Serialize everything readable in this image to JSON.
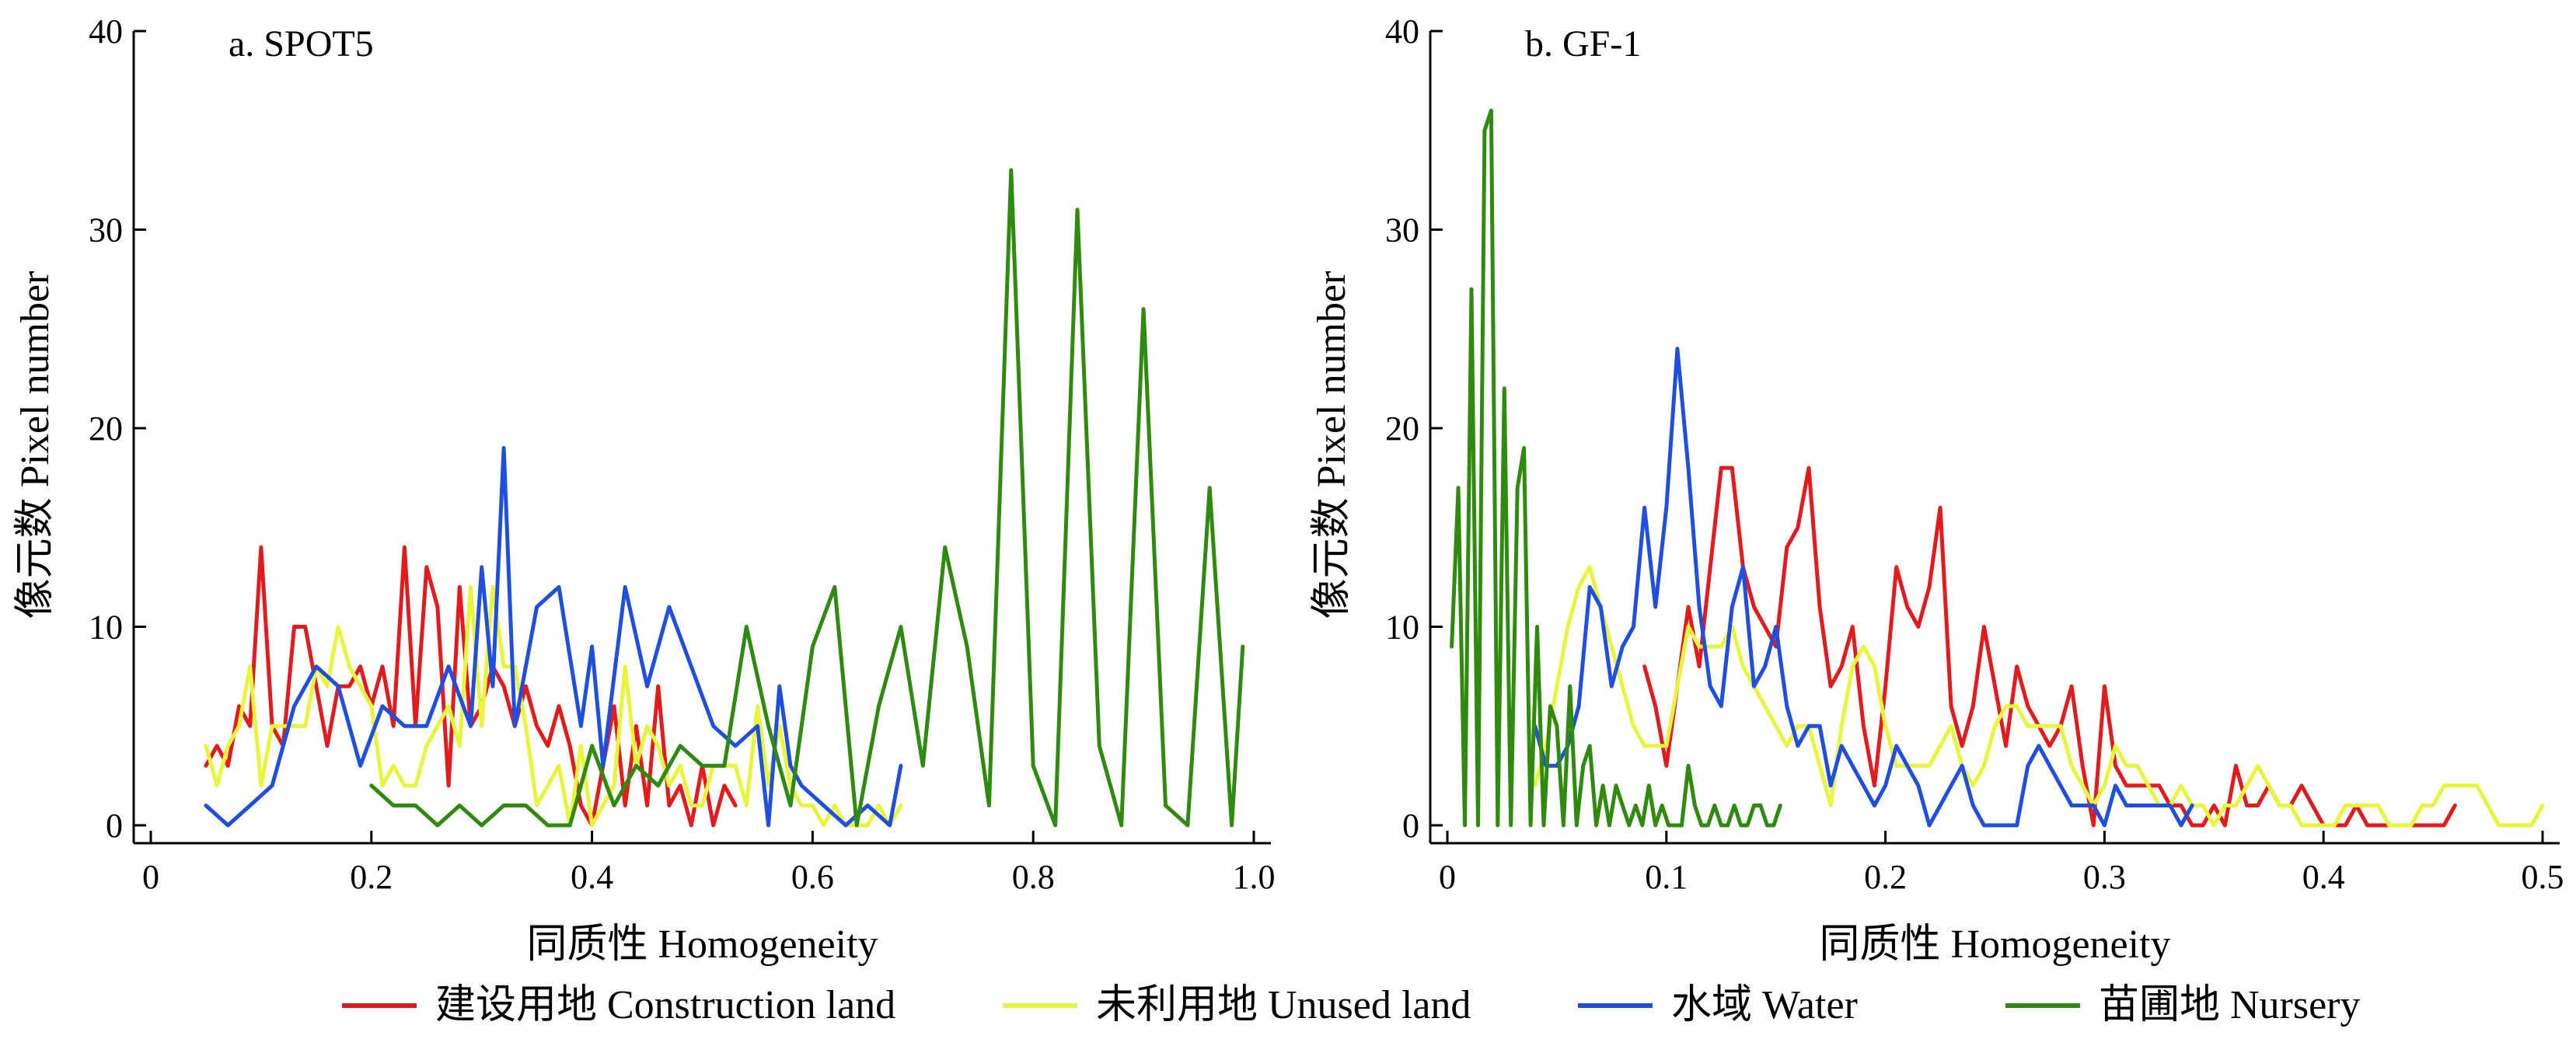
{
  "colors": {
    "construction": "#e41a1c",
    "unused": "#e8f53a",
    "water": "#1f4fe0",
    "nursery": "#2e8b0e"
  },
  "legend": [
    {
      "key": "construction",
      "label": "建设用地 Construction land"
    },
    {
      "key": "unused",
      "label": "未利用地 Unused land"
    },
    {
      "key": "water",
      "label": "水域 Water"
    },
    {
      "key": "nursery",
      "label": "苗圃地 Nursery"
    }
  ],
  "chart_data": [
    {
      "type": "line",
      "title": "a. SPOT5",
      "xlabel": "同质性 Homogeneity",
      "ylabel": "像元数 Pixel number",
      "xlim": [
        0,
        1.0
      ],
      "ylim": [
        0,
        40
      ],
      "xticks": [
        0,
        0.2,
        0.4,
        0.6,
        0.8,
        1.0
      ],
      "xtick_labels": [
        "0",
        "0.2",
        "0.4",
        "0.6",
        "0.8",
        "1.0"
      ],
      "yticks": [
        0,
        10,
        20,
        30,
        40
      ],
      "ytick_labels": [
        "0",
        "10",
        "20",
        "30",
        "40"
      ],
      "series": [
        {
          "key": "construction",
          "name": "建设用地 Construction land",
          "x": [
            0.05,
            0.06,
            0.07,
            0.08,
            0.09,
            0.1,
            0.11,
            0.12,
            0.13,
            0.14,
            0.15,
            0.16,
            0.17,
            0.18,
            0.19,
            0.2,
            0.21,
            0.22,
            0.23,
            0.24,
            0.25,
            0.26,
            0.27,
            0.28,
            0.29,
            0.3,
            0.31,
            0.32,
            0.33,
            0.34,
            0.35,
            0.36,
            0.37,
            0.38,
            0.39,
            0.4,
            0.41,
            0.42,
            0.43,
            0.44,
            0.45,
            0.46,
            0.47,
            0.48,
            0.49,
            0.5,
            0.51,
            0.52,
            0.53
          ],
          "y": [
            3,
            4,
            3,
            6,
            5,
            14,
            5,
            4,
            10,
            10,
            7,
            4,
            7,
            7,
            8,
            6,
            8,
            5,
            14,
            5,
            13,
            11,
            2,
            12,
            5,
            6,
            8,
            7,
            5,
            7,
            5,
            4,
            6,
            4,
            1,
            0,
            3,
            6,
            1,
            5,
            1,
            7,
            1,
            2,
            0,
            3,
            0,
            2,
            1
          ]
        },
        {
          "key": "unused",
          "name": "未利用地 Unused land",
          "x": [
            0.05,
            0.06,
            0.07,
            0.08,
            0.09,
            0.1,
            0.11,
            0.12,
            0.13,
            0.14,
            0.15,
            0.16,
            0.17,
            0.18,
            0.19,
            0.2,
            0.21,
            0.22,
            0.23,
            0.24,
            0.25,
            0.26,
            0.27,
            0.28,
            0.29,
            0.3,
            0.31,
            0.32,
            0.33,
            0.34,
            0.35,
            0.36,
            0.37,
            0.38,
            0.39,
            0.4,
            0.41,
            0.42,
            0.43,
            0.44,
            0.45,
            0.46,
            0.47,
            0.48,
            0.49,
            0.5,
            0.51,
            0.52,
            0.53,
            0.54,
            0.55,
            0.56,
            0.57,
            0.58,
            0.59,
            0.6,
            0.61,
            0.62,
            0.63,
            0.64,
            0.65,
            0.66,
            0.67,
            0.68
          ],
          "y": [
            4,
            2,
            4,
            5,
            8,
            2,
            5,
            5,
            5,
            5,
            8,
            7,
            10,
            8,
            7,
            6,
            2,
            3,
            2,
            2,
            4,
            5,
            6,
            4,
            12,
            5,
            12,
            8,
            8,
            5,
            1,
            2,
            3,
            0,
            4,
            0,
            1,
            2,
            8,
            3,
            5,
            4,
            2,
            3,
            1,
            1,
            3,
            3,
            3,
            1,
            6,
            2,
            5,
            2,
            1,
            1,
            0,
            1,
            0,
            0,
            0,
            1,
            0,
            1
          ]
        },
        {
          "key": "water",
          "name": "水域 Water",
          "x": [
            0.05,
            0.07,
            0.09,
            0.11,
            0.13,
            0.15,
            0.17,
            0.19,
            0.21,
            0.23,
            0.25,
            0.27,
            0.29,
            0.3,
            0.31,
            0.32,
            0.33,
            0.35,
            0.37,
            0.39,
            0.4,
            0.41,
            0.43,
            0.45,
            0.47,
            0.49,
            0.51,
            0.53,
            0.55,
            0.56,
            0.57,
            0.58,
            0.59,
            0.61,
            0.63,
            0.65,
            0.67,
            0.68
          ],
          "y": [
            1,
            0,
            1,
            2,
            6,
            8,
            7,
            3,
            6,
            5,
            5,
            8,
            5,
            13,
            7,
            19,
            5,
            11,
            12,
            5,
            9,
            3,
            12,
            7,
            11,
            8,
            5,
            4,
            5,
            0,
            7,
            3,
            2,
            1,
            0,
            1,
            0,
            3
          ]
        },
        {
          "key": "nursery",
          "name": "苗圃地 Nursery",
          "x": [
            0.2,
            0.22,
            0.24,
            0.26,
            0.28,
            0.3,
            0.32,
            0.34,
            0.36,
            0.38,
            0.4,
            0.42,
            0.44,
            0.46,
            0.48,
            0.5,
            0.52,
            0.54,
            0.56,
            0.58,
            0.6,
            0.62,
            0.64,
            0.66,
            0.68,
            0.7,
            0.72,
            0.74,
            0.76,
            0.78,
            0.8,
            0.82,
            0.84,
            0.86,
            0.88,
            0.9,
            0.92,
            0.94,
            0.96,
            0.98,
            0.99
          ],
          "y": [
            2,
            1,
            1,
            0,
            1,
            0,
            1,
            1,
            0,
            0,
            4,
            1,
            3,
            2,
            4,
            3,
            3,
            10,
            5,
            1,
            9,
            12,
            0,
            6,
            10,
            3,
            14,
            9,
            1,
            33,
            3,
            0,
            31,
            4,
            0,
            26,
            1,
            0,
            17,
            0,
            9
          ]
        }
      ]
    },
    {
      "type": "line",
      "title": "b. GF-1",
      "xlabel": "同质性 Homogeneity",
      "ylabel": "像元数 Pixel number",
      "xlim": [
        0,
        0.5
      ],
      "ylim": [
        0,
        40
      ],
      "xticks": [
        0,
        0.1,
        0.2,
        0.3,
        0.4,
        0.5
      ],
      "xtick_labels": [
        "0",
        "0.1",
        "0.2",
        "0.3",
        "0.4",
        "0.5"
      ],
      "yticks": [
        0,
        10,
        20,
        30,
        40
      ],
      "ytick_labels": [
        "0",
        "10",
        "20",
        "30",
        "40"
      ],
      "series": [
        {
          "key": "construction",
          "name": "建设用地 Construction land",
          "x": [
            0.09,
            0.095,
            0.1,
            0.105,
            0.11,
            0.115,
            0.12,
            0.125,
            0.13,
            0.135,
            0.14,
            0.145,
            0.15,
            0.155,
            0.16,
            0.165,
            0.17,
            0.175,
            0.18,
            0.185,
            0.19,
            0.195,
            0.2,
            0.205,
            0.21,
            0.215,
            0.22,
            0.225,
            0.23,
            0.235,
            0.24,
            0.245,
            0.25,
            0.255,
            0.26,
            0.265,
            0.27,
            0.275,
            0.28,
            0.285,
            0.29,
            0.295,
            0.3,
            0.305,
            0.31,
            0.315,
            0.32,
            0.325,
            0.33,
            0.335,
            0.34,
            0.345,
            0.35,
            0.355,
            0.36,
            0.365,
            0.37,
            0.375,
            0.38,
            0.385,
            0.39,
            0.395,
            0.4,
            0.405,
            0.41,
            0.415,
            0.42,
            0.425,
            0.43,
            0.435,
            0.44,
            0.445,
            0.45,
            0.455,
            0.46
          ],
          "y": [
            8,
            6,
            3,
            7,
            11,
            8,
            13,
            18,
            18,
            13,
            11,
            10,
            9,
            14,
            15,
            18,
            11,
            7,
            8,
            10,
            5,
            2,
            7,
            13,
            11,
            10,
            12,
            16,
            6,
            4,
            6,
            10,
            7,
            4,
            8,
            6,
            5,
            4,
            5,
            7,
            3,
            0,
            7,
            3,
            2,
            2,
            2,
            2,
            1,
            1,
            0,
            0,
            1,
            0,
            3,
            1,
            1,
            2,
            1,
            1,
            2,
            1,
            0,
            0,
            0,
            1,
            0,
            0,
            0,
            0,
            0,
            0,
            0,
            0,
            1
          ]
        },
        {
          "key": "unused",
          "name": "未利用地 Unused land",
          "x": [
            0.04,
            0.045,
            0.05,
            0.055,
            0.06,
            0.065,
            0.07,
            0.075,
            0.08,
            0.085,
            0.09,
            0.095,
            0.1,
            0.105,
            0.11,
            0.115,
            0.12,
            0.125,
            0.13,
            0.135,
            0.14,
            0.145,
            0.15,
            0.155,
            0.16,
            0.165,
            0.17,
            0.175,
            0.18,
            0.185,
            0.19,
            0.195,
            0.2,
            0.205,
            0.21,
            0.215,
            0.22,
            0.225,
            0.23,
            0.235,
            0.24,
            0.245,
            0.25,
            0.255,
            0.26,
            0.265,
            0.27,
            0.275,
            0.28,
            0.285,
            0.29,
            0.295,
            0.3,
            0.305,
            0.31,
            0.315,
            0.32,
            0.325,
            0.33,
            0.335,
            0.34,
            0.345,
            0.35,
            0.355,
            0.36,
            0.365,
            0.37,
            0.375,
            0.38,
            0.385,
            0.39,
            0.395,
            0.4,
            0.405,
            0.41,
            0.415,
            0.42,
            0.425,
            0.43,
            0.435,
            0.44,
            0.445,
            0.45,
            0.455,
            0.46,
            0.465,
            0.47,
            0.475,
            0.48,
            0.485,
            0.49,
            0.495,
            0.5
          ],
          "y": [
            2,
            4,
            7,
            10,
            12,
            13,
            11,
            9,
            7,
            5,
            4,
            4,
            4,
            7,
            10,
            9,
            9,
            9,
            10,
            8,
            7,
            6,
            5,
            4,
            5,
            5,
            3,
            1,
            5,
            8,
            9,
            8,
            5,
            3,
            3,
            3,
            3,
            4,
            5,
            3,
            2,
            3,
            5,
            6,
            6,
            5,
            5,
            5,
            5,
            3,
            2,
            1,
            2,
            4,
            3,
            3,
            2,
            1,
            1,
            2,
            1,
            1,
            0,
            1,
            1,
            2,
            3,
            2,
            1,
            1,
            0,
            0,
            0,
            0,
            1,
            1,
            1,
            1,
            0,
            0,
            0,
            1,
            1,
            2,
            2,
            2,
            2,
            1,
            0,
            0,
            0,
            0,
            1
          ]
        },
        {
          "key": "water",
          "name": "水域 Water",
          "x": [
            0.04,
            0.045,
            0.05,
            0.055,
            0.06,
            0.065,
            0.07,
            0.075,
            0.08,
            0.085,
            0.09,
            0.095,
            0.1,
            0.105,
            0.11,
            0.115,
            0.12,
            0.125,
            0.13,
            0.135,
            0.14,
            0.145,
            0.15,
            0.155,
            0.16,
            0.165,
            0.17,
            0.175,
            0.18,
            0.185,
            0.19,
            0.195,
            0.2,
            0.205,
            0.21,
            0.215,
            0.22,
            0.225,
            0.23,
            0.235,
            0.24,
            0.245,
            0.25,
            0.255,
            0.26,
            0.265,
            0.27,
            0.275,
            0.28,
            0.285,
            0.29,
            0.295,
            0.3,
            0.305,
            0.31,
            0.315,
            0.32,
            0.325,
            0.33,
            0.335,
            0.34
          ],
          "y": [
            5,
            3,
            3,
            4,
            6,
            12,
            11,
            7,
            9,
            10,
            16,
            11,
            16,
            24,
            18,
            11,
            7,
            6,
            11,
            13,
            7,
            8,
            10,
            6,
            4,
            5,
            5,
            2,
            4,
            3,
            2,
            1,
            2,
            4,
            3,
            2,
            0,
            1,
            2,
            3,
            1,
            0,
            0,
            0,
            0,
            3,
            4,
            3,
            2,
            1,
            1,
            1,
            0,
            2,
            1,
            1,
            1,
            1,
            1,
            0,
            1
          ]
        },
        {
          "key": "nursery",
          "name": "苗圃地 Nursery",
          "x": [
            0.002,
            0.005,
            0.008,
            0.011,
            0.014,
            0.017,
            0.02,
            0.023,
            0.026,
            0.029,
            0.032,
            0.035,
            0.038,
            0.041,
            0.044,
            0.047,
            0.05,
            0.053,
            0.056,
            0.059,
            0.062,
            0.065,
            0.068,
            0.071,
            0.074,
            0.077,
            0.08,
            0.083,
            0.086,
            0.089,
            0.092,
            0.095,
            0.098,
            0.101,
            0.104,
            0.107,
            0.11,
            0.113,
            0.116,
            0.119,
            0.122,
            0.125,
            0.128,
            0.131,
            0.134,
            0.137,
            0.14,
            0.143,
            0.146,
            0.149,
            0.152
          ],
          "y": [
            9,
            17,
            0,
            27,
            0,
            35,
            36,
            0,
            22,
            0,
            17,
            19,
            0,
            10,
            0,
            6,
            5,
            0,
            7,
            0,
            3,
            4,
            0,
            2,
            0,
            2,
            1,
            0,
            1,
            0,
            2,
            0,
            1,
            0,
            0,
            0,
            3,
            1,
            0,
            0,
            1,
            0,
            0,
            1,
            0,
            0,
            1,
            1,
            0,
            0,
            1
          ]
        }
      ]
    }
  ]
}
